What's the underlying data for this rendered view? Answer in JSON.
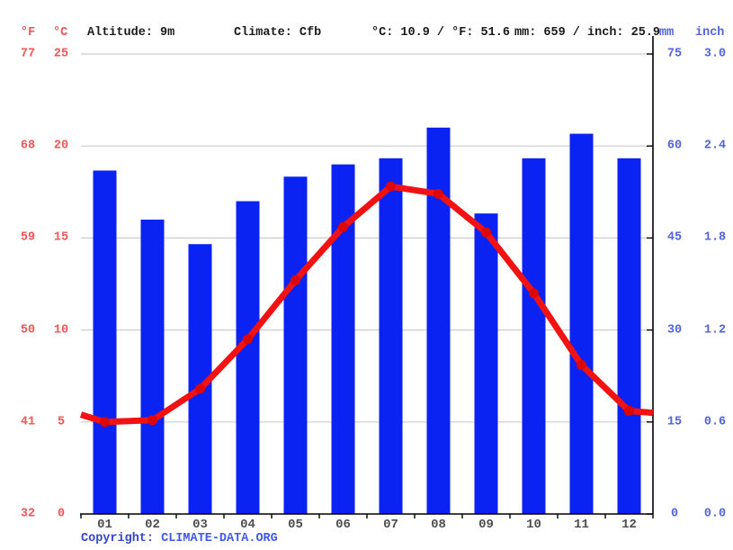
{
  "header": {
    "f_label": "°F",
    "c_label": "°C",
    "altitude": "Altitude: 9m",
    "climate": "Climate: Cfb",
    "temperature_summary": "°C: 10.9 / °F: 51.6",
    "precipitation_summary": "mm: 659 / inch: 25.9",
    "mm_label": "mm",
    "inch_label": "inch"
  },
  "axes": {
    "left_f_ticks": [
      "77",
      "68",
      "59",
      "50",
      "41",
      "32"
    ],
    "left_c_ticks": [
      "25",
      "20",
      "15",
      "10",
      "5",
      "0"
    ],
    "right_mm_ticks": [
      "75",
      "60",
      "45",
      "30",
      "15",
      "0"
    ],
    "right_inch_ticks": [
      "3.0",
      "2.4",
      "1.8",
      "1.2",
      "0.6",
      "0.0"
    ]
  },
  "footer": {
    "copyright_label": "Copyright:",
    "link_text": "CLIMATE-DATA.ORG"
  },
  "colors": {
    "bar_blue": "#0a23f2",
    "line_red": "#f31212",
    "marker_red": "#dc0707",
    "gridline": "#cccccc",
    "axis_black": "#000000",
    "red_label": "#f25555",
    "blue_label": "#5063e0",
    "month_label": "#4d4d4d",
    "copyright_blue": "#3346cc",
    "link_blue": "#3d5ae8"
  },
  "chart_data": {
    "type": "bar+line climograph",
    "categories": [
      "01",
      "02",
      "03",
      "04",
      "05",
      "06",
      "07",
      "08",
      "09",
      "10",
      "11",
      "12"
    ],
    "series": [
      {
        "name": "Precipitation (mm)",
        "type": "bar",
        "values": [
          56,
          48,
          44,
          51,
          55,
          57,
          58,
          63,
          49,
          58,
          62,
          58
        ],
        "color": "#0a23f2"
      },
      {
        "name": "Temperature (°C)",
        "type": "line",
        "values": [
          5.0,
          5.1,
          6.8,
          9.5,
          12.7,
          15.6,
          17.8,
          17.4,
          15.3,
          12.0,
          8.1,
          5.6
        ],
        "edge_values": {
          "left": 5.4,
          "right": 5.5
        },
        "color": "#f31212",
        "marker_color": "#dc0707"
      }
    ],
    "annual_mean_temp_c": 10.9,
    "annual_mean_temp_f": 51.6,
    "annual_precip_mm": 659,
    "annual_precip_inch": 25.9,
    "y_left": {
      "label": "°C",
      "range": [
        0,
        25
      ],
      "ticks": [
        0,
        5,
        10,
        15,
        20,
        25
      ]
    },
    "y_left_secondary": {
      "label": "°F",
      "range": [
        32,
        77
      ],
      "ticks": [
        32,
        41,
        50,
        59,
        68,
        77
      ]
    },
    "y_right": {
      "label": "mm",
      "range": [
        0,
        75
      ],
      "ticks": [
        0,
        15,
        30,
        45,
        60,
        75
      ]
    },
    "y_right_secondary": {
      "label": "inch",
      "range": [
        0.0,
        3.0
      ],
      "ticks": [
        0.0,
        0.6,
        1.2,
        1.8,
        2.4,
        3.0
      ]
    },
    "grid": true,
    "legend": "none"
  }
}
